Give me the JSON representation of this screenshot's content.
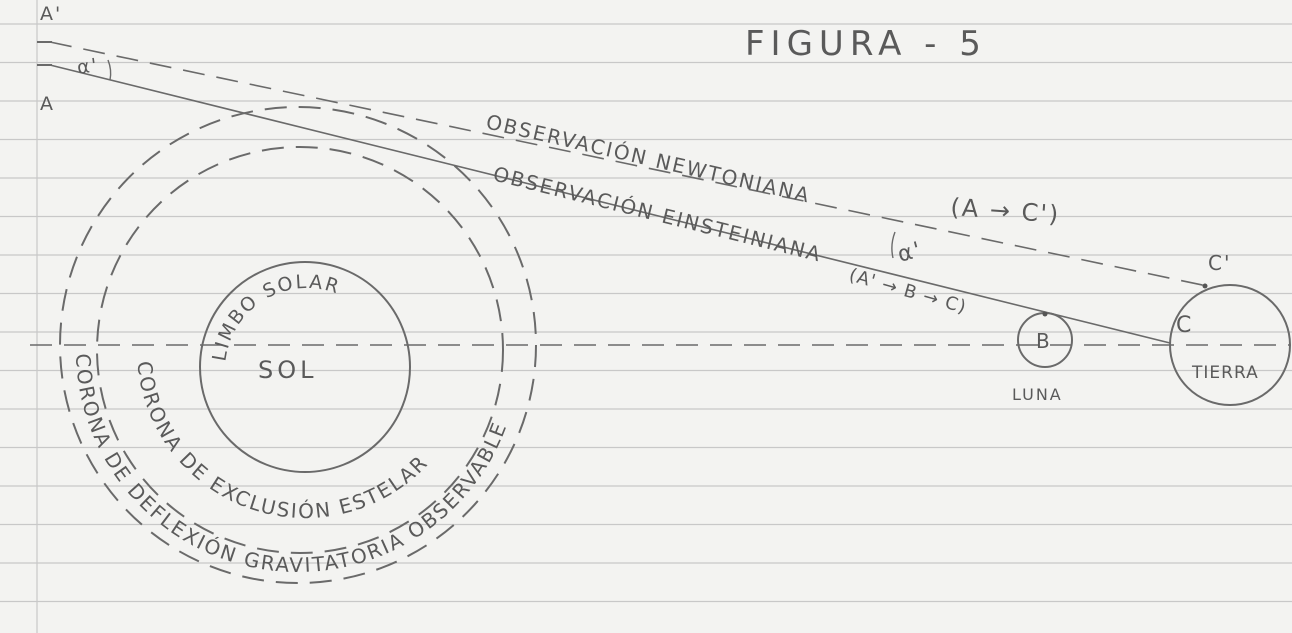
{
  "title": "FIGURA - 5",
  "points": {
    "a_prime": "A'",
    "a": "A",
    "b": "B",
    "c": "C",
    "c_prime": "C'"
  },
  "angles": {
    "near_a": "α'",
    "near_earth": "α'"
  },
  "rays": {
    "newtonian": {
      "label": "OBSERVACIÓN NEWTONIANA",
      "route": "(A → C')"
    },
    "einsteinian": {
      "label": "OBSERVACIÓN EINSTEINIANA",
      "route": "(A' → B → C)"
    }
  },
  "bodies": {
    "sun": {
      "limb": "LIMBO SOLAR",
      "name": "SOL"
    },
    "moon": "LUNA",
    "earth": "TIERRA"
  },
  "coronas": {
    "exclusion": "CORONA DE EXCLUSIÓN ESTELAR",
    "deflection": "CORONA DE DEFLEXIÓN GRAVITATORIA OBSERVABLE"
  }
}
